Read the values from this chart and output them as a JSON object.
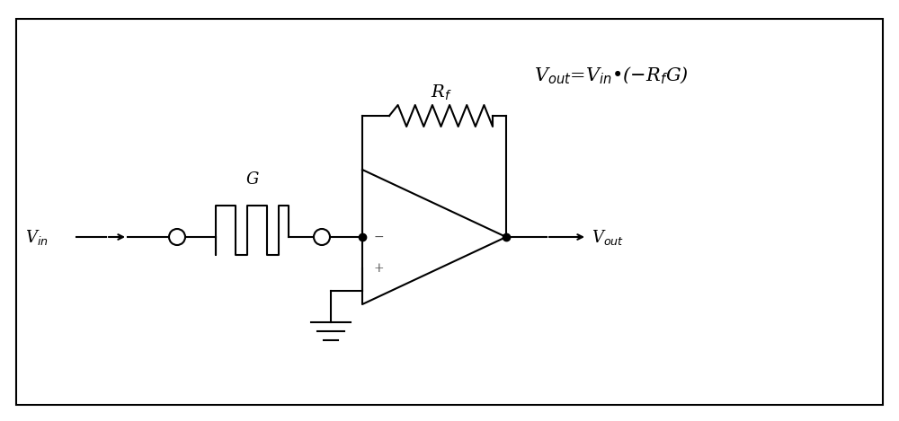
{
  "fig_width": 10.0,
  "fig_height": 4.69,
  "dpi": 100,
  "bg_color": "#ffffff",
  "line_color": "#000000",
  "line_width": 1.5,
  "resistor_color": "#000000",
  "formula_text": "V$_{out}$=V$_{in}$•(−R$_f$G)",
  "Vin_label": "V$_{in}$",
  "Vout_label": "V$_{out}$",
  "G_label": "G",
  "Rf_label": "R$_f$",
  "minus_label": "−",
  "plus_label": "+",
  "border_lw": 1.5,
  "formula_fontsize": 15,
  "label_fontsize": 13,
  "sign_fontsize": 10
}
